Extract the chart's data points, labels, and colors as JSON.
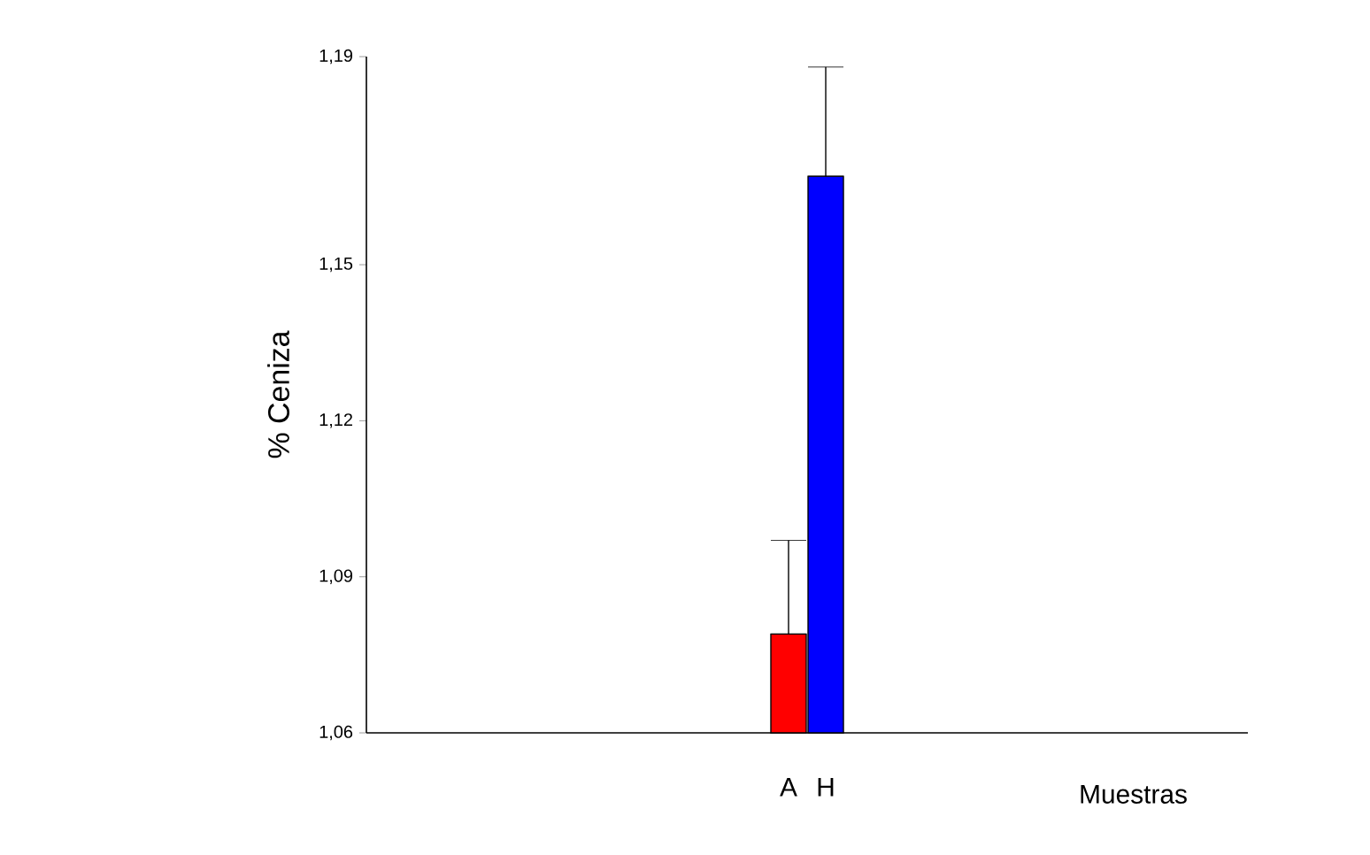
{
  "chart_data": {
    "type": "bar",
    "ylabel": "% Ceniza",
    "xlabel": "Muestras",
    "categories": [
      "A",
      "H"
    ],
    "values": [
      1.079,
      1.167
    ],
    "colors": [
      "#ff0000",
      "#0000ff"
    ],
    "errors": [
      [
        1.079,
        1.097
      ],
      [
        1.167,
        1.188
      ]
    ],
    "ylim": [
      1.06,
      1.19
    ],
    "yticks": [
      {
        "value": 1.06,
        "label": "1,06"
      },
      {
        "value": 1.09,
        "label": "1,09"
      },
      {
        "value": 1.12,
        "label": "1,12"
      },
      {
        "value": 1.15,
        "label": "1,15"
      },
      {
        "value": 1.19,
        "label": "1,19"
      }
    ],
    "grid": false
  }
}
